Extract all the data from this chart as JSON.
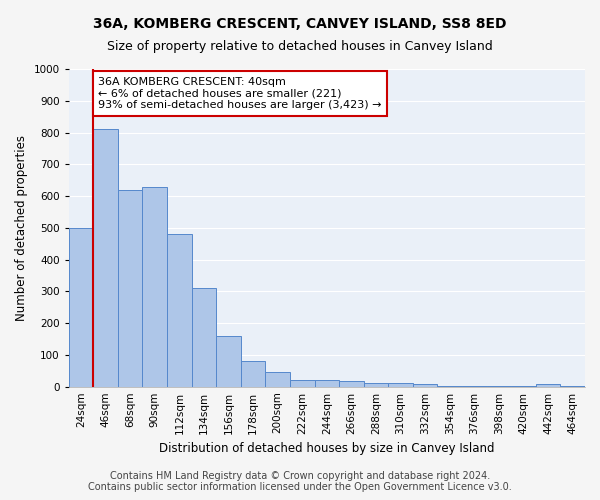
{
  "title": "36A, KOMBERG CRESCENT, CANVEY ISLAND, SS8 8ED",
  "subtitle": "Size of property relative to detached houses in Canvey Island",
  "xlabel": "Distribution of detached houses by size in Canvey Island",
  "ylabel": "Number of detached properties",
  "bin_labels": [
    "24sqm",
    "46sqm",
    "68sqm",
    "90sqm",
    "112sqm",
    "134sqm",
    "156sqm",
    "178sqm",
    "200sqm",
    "222sqm",
    "244sqm",
    "266sqm",
    "288sqm",
    "310sqm",
    "332sqm",
    "354sqm",
    "376sqm",
    "398sqm",
    "420sqm",
    "442sqm",
    "464sqm"
  ],
  "bar_heights": [
    500,
    810,
    620,
    630,
    480,
    310,
    160,
    80,
    45,
    22,
    20,
    18,
    13,
    12,
    8,
    2,
    1,
    1,
    1,
    10,
    2
  ],
  "bar_color": "#aec6e8",
  "bar_edge_color": "#5588cc",
  "annotation_text": "36A KOMBERG CRESCENT: 40sqm\n← 6% of detached houses are smaller (221)\n93% of semi-detached houses are larger (3,423) →",
  "annotation_box_color": "#ffffff",
  "annotation_box_edge_color": "#cc0000",
  "property_line_color": "#cc0000",
  "ylim": [
    0,
    1000
  ],
  "yticks": [
    0,
    100,
    200,
    300,
    400,
    500,
    600,
    700,
    800,
    900,
    1000
  ],
  "footer_line1": "Contains HM Land Registry data © Crown copyright and database right 2024.",
  "footer_line2": "Contains public sector information licensed under the Open Government Licence v3.0.",
  "bg_color": "#eaf0f8",
  "grid_color": "#ffffff",
  "fig_bg_color": "#f5f5f5",
  "title_fontsize": 10,
  "subtitle_fontsize": 9,
  "label_fontsize": 8.5,
  "tick_fontsize": 7.5,
  "annotation_fontsize": 8,
  "footer_fontsize": 7
}
